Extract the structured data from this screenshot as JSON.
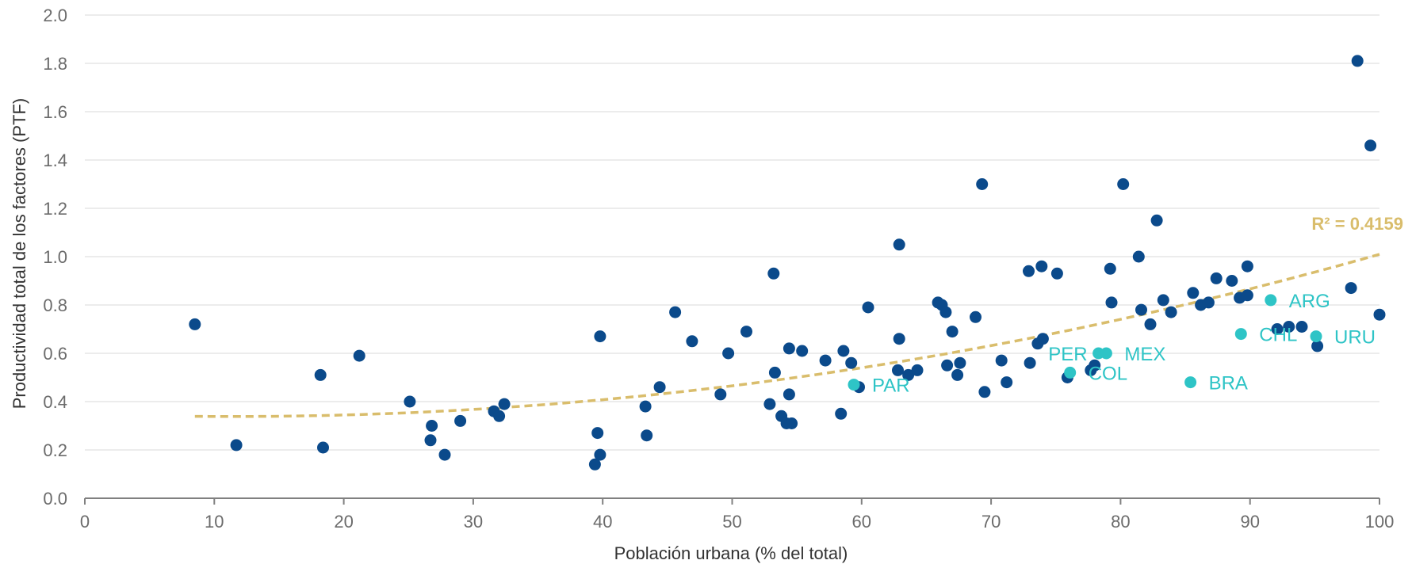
{
  "chart_data": {
    "type": "scatter",
    "title": "",
    "xlabel": "Población urbana (% del total)",
    "ylabel": "Productividad total de los factores (PTF)",
    "xlim": [
      0,
      100
    ],
    "ylim": [
      0,
      2.0
    ],
    "xticks": [
      0,
      10,
      20,
      30,
      40,
      50,
      60,
      70,
      80,
      90,
      100
    ],
    "yticks": [
      "0.0",
      "0.2",
      "0.4",
      "0.6",
      "0.8",
      "1.0",
      "1.2",
      "1.4",
      "1.6",
      "1.8",
      "2.0"
    ],
    "grid": true,
    "colors": {
      "points": "#0b4a8b",
      "highlight": "#2ec4c6",
      "trend": "#d9bd6c",
      "grid": "#d9d9d9",
      "axis": "#808080"
    },
    "trendline": {
      "type": "quadratic",
      "r2_label": "R² = 0.4159",
      "x": [
        8.5,
        100
      ],
      "coeffs": [
        0.3497,
        -0.00197,
        8.57e-05
      ]
    },
    "points": [
      [
        8.5,
        0.72
      ],
      [
        11.7,
        0.22
      ],
      [
        18.2,
        0.51
      ],
      [
        18.4,
        0.21
      ],
      [
        21.2,
        0.59
      ],
      [
        25.1,
        0.4
      ],
      [
        26.7,
        0.24
      ],
      [
        26.8,
        0.3
      ],
      [
        27.8,
        0.18
      ],
      [
        29.0,
        0.32
      ],
      [
        31.6,
        0.36
      ],
      [
        32.0,
        0.34
      ],
      [
        32.4,
        0.39
      ],
      [
        39.4,
        0.14
      ],
      [
        39.6,
        0.27
      ],
      [
        39.8,
        0.18
      ],
      [
        39.8,
        0.67
      ],
      [
        43.3,
        0.38
      ],
      [
        43.4,
        0.26
      ],
      [
        44.4,
        0.46
      ],
      [
        45.6,
        0.77
      ],
      [
        46.9,
        0.65
      ],
      [
        49.1,
        0.43
      ],
      [
        49.7,
        0.6
      ],
      [
        51.1,
        0.69
      ],
      [
        52.9,
        0.39
      ],
      [
        53.2,
        0.93
      ],
      [
        53.3,
        0.52
      ],
      [
        53.8,
        0.34
      ],
      [
        54.2,
        0.31
      ],
      [
        54.4,
        0.62
      ],
      [
        54.4,
        0.43
      ],
      [
        54.6,
        0.31
      ],
      [
        55.4,
        0.61
      ],
      [
        57.2,
        0.57
      ],
      [
        58.4,
        0.35
      ],
      [
        58.6,
        0.61
      ],
      [
        59.2,
        0.56
      ],
      [
        59.8,
        0.46
      ],
      [
        60.5,
        0.79
      ],
      [
        62.8,
        0.53
      ],
      [
        62.9,
        1.05
      ],
      [
        62.9,
        0.66
      ],
      [
        63.6,
        0.51
      ],
      [
        64.3,
        0.53
      ],
      [
        65.9,
        0.81
      ],
      [
        66.2,
        0.8
      ],
      [
        66.5,
        0.77
      ],
      [
        66.6,
        0.55
      ],
      [
        67.0,
        0.69
      ],
      [
        67.4,
        0.51
      ],
      [
        67.6,
        0.56
      ],
      [
        68.8,
        0.75
      ],
      [
        69.3,
        1.3
      ],
      [
        69.5,
        0.44
      ],
      [
        70.8,
        0.57
      ],
      [
        71.2,
        0.48
      ],
      [
        72.9,
        0.94
      ],
      [
        73.0,
        0.56
      ],
      [
        73.6,
        0.64
      ],
      [
        73.9,
        0.96
      ],
      [
        74.0,
        0.66
      ],
      [
        75.1,
        0.93
      ],
      [
        75.9,
        0.5
      ],
      [
        77.7,
        0.53
      ],
      [
        78.0,
        0.55
      ],
      [
        79.2,
        0.95
      ],
      [
        79.3,
        0.81
      ],
      [
        80.2,
        1.3
      ],
      [
        81.4,
        1.0
      ],
      [
        81.6,
        0.78
      ],
      [
        82.3,
        0.72
      ],
      [
        82.8,
        1.15
      ],
      [
        83.3,
        0.82
      ],
      [
        83.9,
        0.77
      ],
      [
        85.6,
        0.85
      ],
      [
        86.2,
        0.8
      ],
      [
        86.8,
        0.81
      ],
      [
        87.4,
        0.91
      ],
      [
        88.6,
        0.9
      ],
      [
        89.2,
        0.83
      ],
      [
        89.8,
        0.84
      ],
      [
        89.8,
        0.96
      ],
      [
        92.1,
        0.7
      ],
      [
        93.0,
        0.71
      ],
      [
        94.0,
        0.71
      ],
      [
        95.2,
        0.63
      ],
      [
        97.8,
        0.87
      ],
      [
        98.3,
        1.81
      ],
      [
        99.3,
        1.46
      ],
      [
        100.0,
        0.76
      ]
    ],
    "highlighted": [
      {
        "label": "ARG",
        "x": 91.6,
        "y": 0.82,
        "label_side": "right"
      },
      {
        "label": "CHL",
        "x": 89.3,
        "y": 0.68,
        "label_side": "right"
      },
      {
        "label": "URU",
        "x": 95.1,
        "y": 0.67,
        "label_side": "right"
      },
      {
        "label": "PER",
        "x": 78.3,
        "y": 0.6,
        "label_side": "left"
      },
      {
        "label": "MEX",
        "x": 78.9,
        "y": 0.6,
        "label_side": "right"
      },
      {
        "label": "COL",
        "x": 76.1,
        "y": 0.52,
        "label_side": "right"
      },
      {
        "label": "BRA",
        "x": 85.4,
        "y": 0.48,
        "label_side": "right"
      },
      {
        "label": "PAR",
        "x": 59.4,
        "y": 0.47,
        "label_side": "right"
      }
    ]
  }
}
